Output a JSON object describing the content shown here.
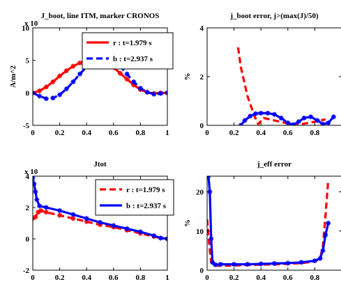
{
  "chart_data": [
    {
      "type": "line",
      "title": "J_boot, line ITM, marker CRONOS",
      "ylabel": "A/m^2",
      "exponent_label": "x 10",
      "xlim": [
        0,
        1
      ],
      "ylim": [
        -5,
        10
      ],
      "xticks": [
        0,
        0.2,
        0.4,
        0.6,
        0.8,
        1
      ],
      "xtick_labels": [
        "0",
        "0.2",
        "0.4",
        "0.6",
        "0.8",
        "1"
      ],
      "yticks": [
        -5,
        0,
        5,
        10
      ],
      "ytick_labels": [
        "-5",
        "0",
        "5",
        "10"
      ],
      "legend": {
        "position": "top-right"
      },
      "series": [
        {
          "name": "r : t=1.979 s",
          "color": "#ff0000",
          "style": "solid",
          "markers": "star",
          "x": [
            0,
            0.05,
            0.1,
            0.15,
            0.2,
            0.25,
            0.3,
            0.35,
            0.4,
            0.45,
            0.5,
            0.55,
            0.6,
            0.65,
            0.7,
            0.75,
            0.8,
            0.85,
            0.9,
            0.95,
            1.0
          ],
          "y": [
            0,
            0.3,
            0.9,
            1.7,
            2.6,
            3.4,
            4.1,
            4.6,
            4.9,
            5.0,
            4.9,
            4.5,
            3.9,
            3.0,
            2.1,
            1.2,
            0.5,
            0.1,
            -0.1,
            0,
            0
          ]
        },
        {
          "name": "b : t=2.937 s",
          "color": "#0000ff",
          "style": "dashed",
          "markers": "star",
          "x": [
            0,
            0.05,
            0.1,
            0.15,
            0.2,
            0.25,
            0.3,
            0.35,
            0.4,
            0.45,
            0.5,
            0.55,
            0.6,
            0.65,
            0.7,
            0.75,
            0.8,
            0.85,
            0.9,
            0.95,
            1.0
          ],
          "y": [
            0,
            -0.5,
            -0.9,
            -0.8,
            -0.3,
            0.6,
            1.7,
            2.9,
            4.0,
            4.9,
            5.5,
            5.6,
            5.1,
            4.1,
            2.9,
            1.7,
            0.7,
            0.1,
            -0.2,
            -0.1,
            0
          ]
        }
      ]
    },
    {
      "type": "line",
      "title": "j_boot error, j>(max(J)/50)",
      "ylabel": "%",
      "xlim": [
        0,
        1
      ],
      "ylim": [
        0,
        4
      ],
      "xticks": [
        0,
        0.2,
        0.4,
        0.6,
        0.8
      ],
      "xtick_labels": [
        "0",
        "0.2",
        "0.4",
        "0.6",
        "0.8"
      ],
      "yticks": [
        0,
        2,
        4
      ],
      "ytick_labels": [
        "0",
        "2",
        "4"
      ],
      "series": [
        {
          "color": "#ff0000",
          "style": "dashed",
          "markers": "none",
          "x": [
            0.23,
            0.25,
            0.3,
            0.35,
            0.38,
            0.42,
            0.5,
            0.6,
            0.7,
            0.8,
            0.88
          ],
          "y": [
            3.2,
            2.4,
            1.2,
            0.4,
            0.05,
            0.3,
            0.2,
            0.08,
            0.05,
            0.15,
            0.25
          ]
        },
        {
          "color": "#0000ff",
          "style": "solid",
          "markers": "star",
          "x": [
            0.25,
            0.28,
            0.32,
            0.36,
            0.4,
            0.45,
            0.5,
            0.55,
            0.6,
            0.64,
            0.68,
            0.72,
            0.77,
            0.82,
            0.86,
            0.9,
            0.94
          ],
          "y": [
            0.0,
            0.2,
            0.38,
            0.48,
            0.5,
            0.5,
            0.45,
            0.3,
            0.1,
            0.02,
            0.15,
            0.3,
            0.35,
            0.2,
            0.05,
            0.1,
            0.35
          ]
        }
      ]
    },
    {
      "type": "line",
      "title": "Jtot",
      "exponent_label": "x 10",
      "xlim": [
        0,
        1
      ],
      "ylim": [
        -2,
        4
      ],
      "xticks": [
        0,
        0.2,
        0.4,
        0.6,
        0.8,
        1
      ],
      "xtick_labels": [
        "0",
        "0.2",
        "0.4",
        "0.6",
        "0.8",
        "1"
      ],
      "yticks": [
        -2,
        0,
        2,
        4
      ],
      "ytick_labels": [
        "-2",
        "0",
        "2",
        "4"
      ],
      "legend": {
        "position": "top-right"
      },
      "series": [
        {
          "name": "r : t=1.979 s",
          "color": "#ff0000",
          "style": "dashed",
          "markers": "star",
          "x": [
            0,
            0.02,
            0.04,
            0.06,
            0.1,
            0.2,
            0.3,
            0.4,
            0.5,
            0.6,
            0.7,
            0.8,
            0.9,
            0.95,
            1.0
          ],
          "y": [
            1.3,
            1.4,
            1.7,
            1.8,
            1.7,
            1.5,
            1.3,
            1.1,
            0.9,
            0.75,
            0.55,
            0.35,
            0.15,
            0.05,
            0
          ]
        },
        {
          "name": "b : t=2.937 s",
          "color": "#0000ff",
          "style": "solid",
          "markers": "star",
          "x": [
            0,
            0.01,
            0.02,
            0.03,
            0.05,
            0.1,
            0.2,
            0.3,
            0.4,
            0.5,
            0.6,
            0.7,
            0.8,
            0.9,
            0.95,
            1.0
          ],
          "y": [
            3.9,
            3.5,
            3.0,
            2.5,
            2.1,
            2.0,
            1.8,
            1.55,
            1.3,
            1.05,
            0.85,
            0.65,
            0.45,
            0.2,
            0.05,
            0
          ]
        }
      ]
    },
    {
      "type": "line",
      "title": "j_eff error",
      "ylabel": "%",
      "xlim": [
        0,
        1
      ],
      "ylim": [
        0,
        24
      ],
      "xticks": [
        0,
        0.2,
        0.4,
        0.6,
        0.8
      ],
      "xtick_labels": [
        "0",
        "0.2",
        "0.4",
        "0.6",
        "0.8"
      ],
      "yticks": [
        0,
        10,
        20
      ],
      "ytick_labels": [
        "0",
        "10",
        "20"
      ],
      "series": [
        {
          "color": "#ff0000",
          "style": "dashed",
          "markers": "none",
          "x": [
            0,
            0.01,
            0.02,
            0.03,
            0.05,
            0.1,
            0.2,
            0.3,
            0.4,
            0.5,
            0.6,
            0.7,
            0.8,
            0.84,
            0.86,
            0.88,
            0.9
          ],
          "y": [
            13,
            9,
            5,
            2,
            1.2,
            1.1,
            1.2,
            1.3,
            1.4,
            1.5,
            1.6,
            1.8,
            2.2,
            3,
            6,
            14,
            23
          ]
        },
        {
          "color": "#0000ff",
          "style": "solid",
          "markers": "star",
          "x": [
            0,
            0.01,
            0.02,
            0.03,
            0.04,
            0.06,
            0.1,
            0.2,
            0.3,
            0.4,
            0.5,
            0.6,
            0.7,
            0.8,
            0.84,
            0.86,
            0.88,
            0.9
          ],
          "y": [
            24,
            24,
            20,
            8,
            2,
            1.4,
            1.5,
            1.5,
            1.5,
            1.6,
            1.7,
            1.8,
            2.0,
            2.4,
            3,
            5,
            9,
            12
          ]
        }
      ]
    }
  ]
}
